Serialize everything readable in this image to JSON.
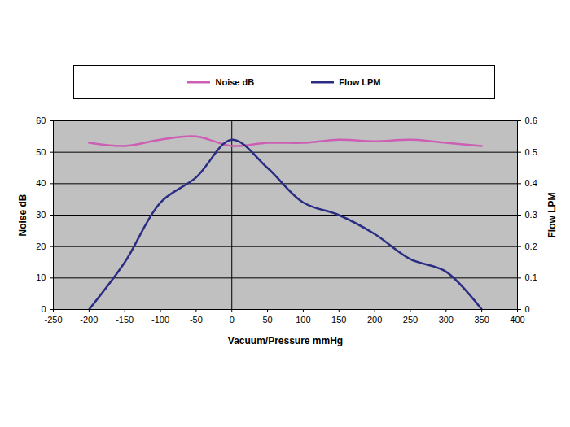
{
  "chart_data": {
    "type": "line",
    "x": [
      -200,
      -150,
      -100,
      -50,
      0,
      50,
      100,
      150,
      200,
      250,
      300,
      350
    ],
    "xlim": [
      -250,
      400
    ],
    "xticks": [
      -250,
      -200,
      -150,
      -100,
      -50,
      0,
      50,
      100,
      150,
      200,
      250,
      300,
      350,
      400
    ],
    "xlabel": "Vacuum/Pressure mmHg",
    "ylabel": "Noise dB",
    "ylim": [
      0,
      60
    ],
    "yticks": [
      0,
      10,
      20,
      30,
      40,
      50,
      60
    ],
    "y2label": "Flow LPM",
    "y2lim": [
      0,
      0.6
    ],
    "y2ticks": [
      0,
      0.1,
      0.2,
      0.3,
      0.4,
      0.5,
      0.6
    ],
    "series": [
      {
        "name": "Noise dB",
        "color": "#cc5fb4",
        "values": [
          53,
          52,
          54,
          55,
          52,
          53,
          53,
          54,
          53.5,
          54,
          53,
          52
        ]
      },
      {
        "name": "Flow LPM",
        "color": "#2b2d84",
        "axis": "y2",
        "values": [
          0,
          0.15,
          0.34,
          0.42,
          0.54,
          0.45,
          0.34,
          0.3,
          0.24,
          0.16,
          0.12,
          0
        ]
      }
    ],
    "grid": true,
    "legend": "top"
  }
}
